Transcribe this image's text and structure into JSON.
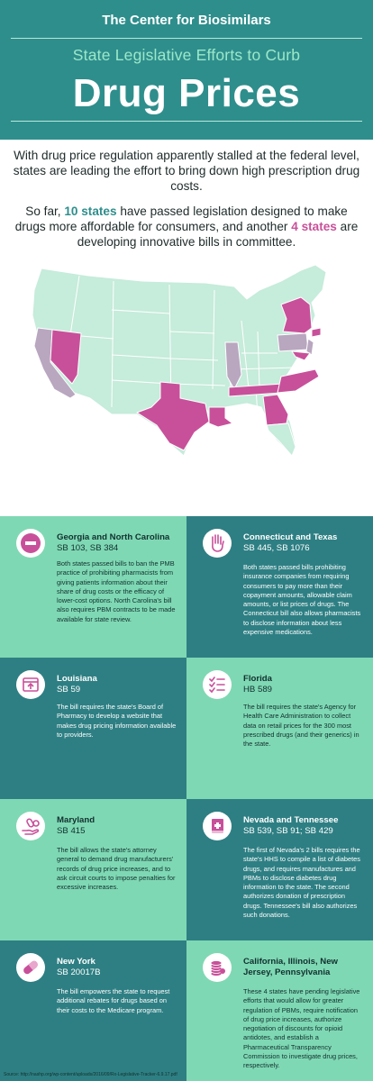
{
  "header": {
    "brand": "The Center for Biosimilars",
    "subtitle": "State Legislative Efforts to Curb",
    "title": "Drug Prices"
  },
  "intro": {
    "para1": "With drug price regulation apparently stalled at the federal level, states are leading the effort to bring down high prescription drug costs.",
    "para2_prefix": "So far, ",
    "para2_states_passed": "10 states",
    "para2_middle": " have passed legislation designed to make drugs more affordable for consumers, and another ",
    "para2_states_pending": "4 states",
    "para2_suffix": " are developing innovative bills in committee."
  },
  "colors": {
    "header_bg": "#2e8e8c",
    "panel_dark": "#2e7f83",
    "panel_light": "#7fd8b4",
    "passed_state": "#c8509a",
    "pending_state": "#b9a6bf",
    "other_state": "#c6ecdb"
  },
  "panels": [
    {
      "icon": "no-entry-icon",
      "title": "Georgia and North Carolina",
      "bills": "SB 103, SB 384",
      "text": "Both states passed bills to ban the PMB practice of prohibiting pharmacists from giving patients information about their share of drug costs or the efficacy of lower-cost options. North Carolina's bill also requires PBM contracts to be made available for state review."
    },
    {
      "icon": "stop-hand-icon",
      "title": "Connecticut and Texas",
      "bills": "SB 445, SB 1076",
      "text": "Both states passed bills prohibiting insurance companies from requiring consumers to pay more than their copayment amounts, allowable claim amounts, or list prices of drugs. The Connecticut bill also allows pharmacists to disclose information about less expensive medications."
    },
    {
      "icon": "website-upload-icon",
      "title": "Louisiana",
      "bills": "SB 59",
      "text": "The bill requires the state's Board of Pharmacy to develop a website that makes drug pricing information available to providers."
    },
    {
      "icon": "checklist-icon",
      "title": "Florida",
      "bills": "HB 589",
      "text": "The bill requires the state's Agency for Health Care Administration to collect data on retail prices for the 300 most prescribed drugs (and their generics)  in the state."
    },
    {
      "icon": "hand-pills-icon",
      "title": "Maryland",
      "bills": "SB 415",
      "text": "The bill allows the state's attorney general to demand drug manufacturers' records of drug price increases, and to ask circuit courts to impose penalties for excessive increases."
    },
    {
      "icon": "medical-book-icon",
      "title": "Nevada and Tennessee",
      "bills": "SB 539, SB 91; SB 429",
      "text": "The first of Nevada's 2 bills requires the state's HHS to compile a list of diabetes drugs, and requires manufactures and PBMs to disclose diabetes drug information to the state. The second authorizes donation of prescription drugs. Tennessee's bill also authorizes such donations."
    },
    {
      "icon": "pill-capsule-icon",
      "title": "New York",
      "bills": "SB 20017B",
      "text": "The bill empowers the state to request additional rebates for drugs based on their costs to the Medicare program."
    },
    {
      "icon": "coin-stack-icon",
      "title": "California, Illinois, New Jersey, Pennsylvania",
      "bills": "",
      "text": "These 4 states have pending legislative efforts that would allow for greater regulation of PBMs, require notification of drug price increases, authorize negotiation of discounts for opioid antidotes, and establish a Pharmaceutical Transparency Commission to investigate drug prices, respectively."
    }
  ],
  "source": "Source: http://nashp.org/wp-content/uploads/2016/09/Rx-Legislative-Tracker-6.9.17.pdf"
}
